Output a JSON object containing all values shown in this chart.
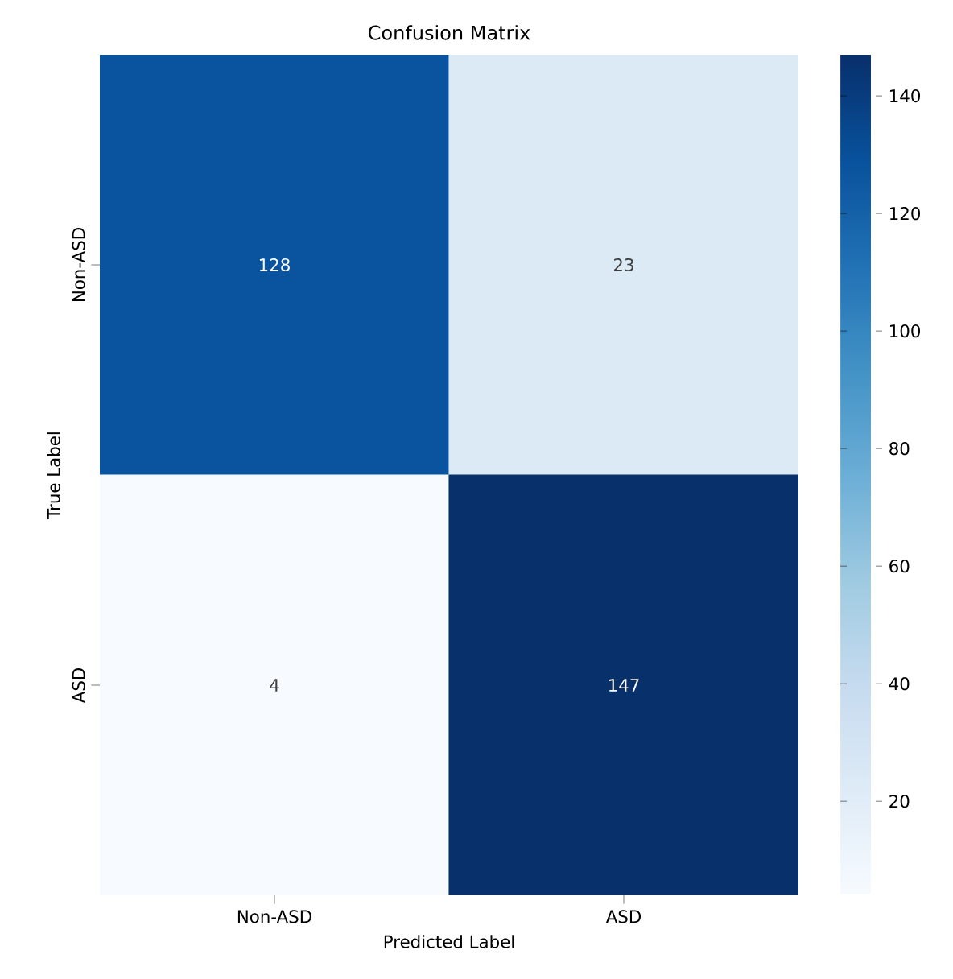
{
  "chart_data": {
    "type": "heatmap",
    "title": "Confusion Matrix",
    "xlabel": "Predicted Label",
    "ylabel": "True Label",
    "categories": [
      "Non-ASD",
      "ASD"
    ],
    "y_categories": [
      "Non-ASD",
      "ASD"
    ],
    "cells": [
      [
        128,
        23
      ],
      [
        4,
        147
      ]
    ],
    "data_labels": true,
    "clim": [
      4,
      147
    ],
    "cticks": [
      20,
      40,
      60,
      80,
      100,
      120,
      140
    ]
  }
}
